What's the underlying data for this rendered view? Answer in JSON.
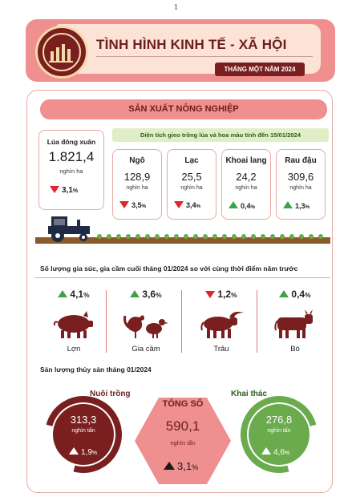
{
  "page_number": "1",
  "header": {
    "title": "TÌNH HÌNH KINH TẾ - XÃ HỘI",
    "subtitle": "THÁNG MỘT NĂM 2024",
    "logo_icon": "statistics-office-seal"
  },
  "agriculture": {
    "section_title": "SẢN XUẤT NÔNG NGHIỆP",
    "rice": {
      "label": "Lúa đông xuân",
      "value": "1.821,4",
      "unit": "nghìn ha",
      "change": "3,1",
      "pct": "%",
      "direction": "down"
    },
    "planting_banner": "Diện tích gieo trồng lúa và hoa màu tính đến 15/01/2024",
    "crops": [
      {
        "label": "Ngô",
        "value": "128,9",
        "unit": "nghìn ha",
        "change": "3,5",
        "pct": "%",
        "direction": "down"
      },
      {
        "label": "Lạc",
        "value": "25,5",
        "unit": "nghìn ha",
        "change": "3,4",
        "pct": "%",
        "direction": "down"
      },
      {
        "label": "Khoai lang",
        "value": "24,2",
        "unit": "nghìn ha",
        "change": "0,4",
        "pct": "%",
        "direction": "up"
      },
      {
        "label": "Rau đậu",
        "value": "309,6",
        "unit": "nghìn ha",
        "change": "1,3",
        "pct": "%",
        "direction": "up"
      }
    ]
  },
  "livestock": {
    "title": "Số lượng gia súc, gia cầm cuối tháng 01/2024 so với cùng thời điểm năm trước",
    "items": [
      {
        "label": "Lợn",
        "change": "4,1",
        "pct": "%",
        "direction": "up",
        "icon": "pig-icon"
      },
      {
        "label": "Gia cầm",
        "change": "3,6",
        "pct": "%",
        "direction": "up",
        "icon": "poultry-icon"
      },
      {
        "label": "Trâu",
        "change": "1,2",
        "pct": "%",
        "direction": "down",
        "icon": "buffalo-icon"
      },
      {
        "label": "Bò",
        "change": "0,4",
        "pct": "%",
        "direction": "up",
        "icon": "cow-icon"
      }
    ]
  },
  "fishery": {
    "title": "Sản lượng thủy sản tháng 01/2024",
    "aquaculture": {
      "label": "Nuôi trồng",
      "value": "313,3",
      "unit": "nghìn tấn",
      "change": "1,9",
      "pct": "%"
    },
    "total": {
      "label": "TỔNG SỐ",
      "value": "590,1",
      "unit": "nghìn tấn",
      "change": "3,1",
      "pct": "%"
    },
    "capture": {
      "label": "Khai thác",
      "value": "276,8",
      "unit": "nghìn tấn",
      "change": "4,6",
      "pct": "%"
    }
  },
  "colors": {
    "header_pink": "#ef8f90",
    "maroon": "#7a1f1f",
    "green": "#6bab4e",
    "down_red": "#e0242b",
    "up_green": "#3da34a"
  }
}
